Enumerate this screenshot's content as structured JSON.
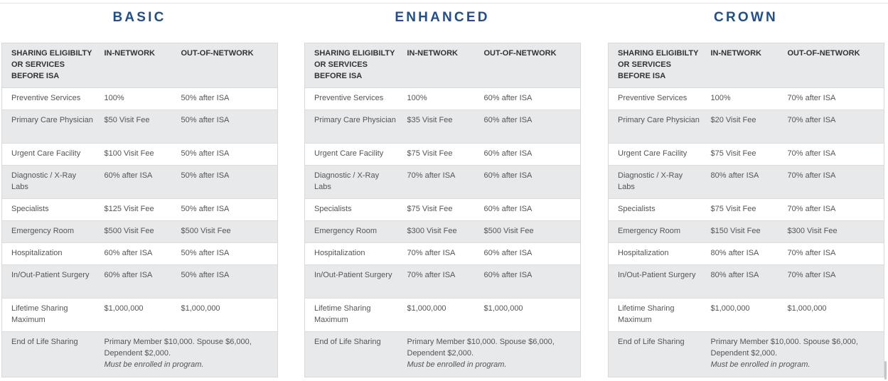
{
  "headers": {
    "eligibility": "SHARING ELIGIBILTY OR SERVICES BEFORE ISA",
    "in_network": "IN-NETWORK",
    "out_network": "OUT-OF-NETWORK"
  },
  "plans": [
    {
      "title": "BASIC",
      "rows": [
        {
          "service": "Preventive Services",
          "in": "100%",
          "out": "50% after ISA"
        },
        {
          "service": "Primary Care Physician",
          "in": "$50 Visit Fee",
          "out": "50% after ISA"
        },
        {
          "service": "Urgent Care Facility",
          "in": "$100 Visit Fee",
          "out": "50% after ISA"
        },
        {
          "service": "Diagnostic / X-Ray Labs",
          "in": "60% after ISA",
          "out": "50% after ISA"
        },
        {
          "service": "Specialists",
          "in": "$125 Visit Fee",
          "out": "50% after ISA"
        },
        {
          "service": "Emergency Room",
          "in": "$500 Visit Fee",
          "out": "$500 Visit Fee"
        },
        {
          "service": "Hospitalization",
          "in": "60% after ISA",
          "out": "50% after ISA"
        },
        {
          "service": "In/Out-Patient Surgery",
          "in": "60% after ISA",
          "out": "50% after ISA"
        },
        {
          "service": "Lifetime Sharing Maximum",
          "in": "$1,000,000",
          "out": "$1,000,000"
        }
      ],
      "end_of_life": {
        "service": "End of Life Sharing",
        "text": "Primary Member $10,000. Spouse $6,000, Dependent $2,000.",
        "note": "Must be enrolled in program."
      }
    },
    {
      "title": "ENHANCED",
      "rows": [
        {
          "service": "Preventive Services",
          "in": "100%",
          "out": "60% after ISA"
        },
        {
          "service": "Primary Care Physician",
          "in": "$35 Visit Fee",
          "out": "60% after ISA"
        },
        {
          "service": "Urgent Care Facility",
          "in": "$75 Visit Fee",
          "out": "60% after ISA"
        },
        {
          "service": "Diagnostic / X-Ray Labs",
          "in": "70% after ISA",
          "out": "60% after ISA"
        },
        {
          "service": "Specialists",
          "in": "$75 Visit Fee",
          "out": "60% after ISA"
        },
        {
          "service": "Emergency Room",
          "in": "$300 Visit Fee",
          "out": "$500 Visit Fee"
        },
        {
          "service": "Hospitalization",
          "in": "70% after ISA",
          "out": "60% after ISA"
        },
        {
          "service": "In/Out-Patient Surgery",
          "in": "70% after ISA",
          "out": "60% after ISA"
        },
        {
          "service": "Lifetime Sharing Maximum",
          "in": "$1,000,000",
          "out": "$1,000,000"
        }
      ],
      "end_of_life": {
        "service": "End of Life Sharing",
        "text": "Primary Member $10,000. Spouse $6,000, Dependent $2,000.",
        "note": "Must be enrolled in program."
      }
    },
    {
      "title": "CROWN",
      "rows": [
        {
          "service": "Preventive Services",
          "in": "100%",
          "out": "70% after ISA"
        },
        {
          "service": "Primary Care Physician",
          "in": "$20 Visit Fee",
          "out": "70% after ISA"
        },
        {
          "service": "Urgent Care Facility",
          "in": "$75 Visit Fee",
          "out": "70% after ISA"
        },
        {
          "service": "Diagnostic / X-Ray Labs",
          "in": "80% after ISA",
          "out": "70% after ISA"
        },
        {
          "service": "Specialists",
          "in": "$75 Visit Fee",
          "out": "70% after ISA"
        },
        {
          "service": "Emergency Room",
          "in": "$150 Visit Fee",
          "out": "$300 Visit Fee"
        },
        {
          "service": "Hospitalization",
          "in": "80% after ISA",
          "out": "70% after ISA"
        },
        {
          "service": "In/Out-Patient Surgery",
          "in": "80% after ISA",
          "out": "70% after ISA"
        },
        {
          "service": "Lifetime Sharing Maximum",
          "in": "$1,000,000",
          "out": "$1,000,000"
        }
      ],
      "end_of_life": {
        "service": "End of Life Sharing",
        "text": "Primary Member $10,000. Spouse $6,000, Dependent $2,000.",
        "note": "Must be enrolled in program."
      }
    }
  ],
  "colors": {
    "title": "#1f4e91",
    "header_bg": "#e8e9ea",
    "text": "#555555"
  }
}
